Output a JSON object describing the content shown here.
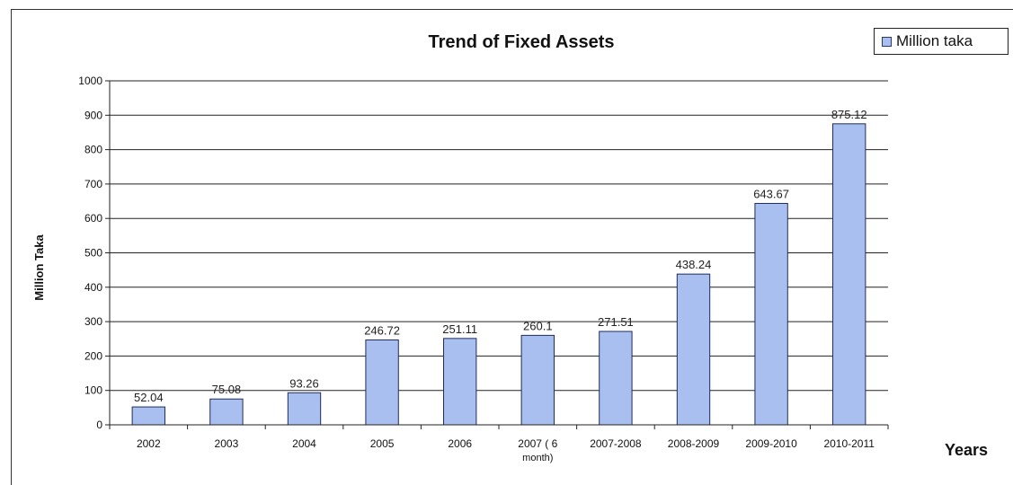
{
  "chart_data": {
    "type": "bar",
    "title": "Trend of Fixed Assets",
    "xlabel": "Years",
    "ylabel": "Million Taka",
    "ylim": [
      0,
      1000
    ],
    "yticks": [
      0,
      100,
      200,
      300,
      400,
      500,
      600,
      700,
      800,
      900,
      1000
    ],
    "grid": true,
    "legend_position": "top-right",
    "categories": [
      "2002",
      "2003",
      "2004",
      "2005",
      "2006",
      "2007 ( 6 month)",
      "2007-2008",
      "2008-2009",
      "2009-2010",
      "2010-2011"
    ],
    "series": [
      {
        "name": "Million taka",
        "values": [
          52.04,
          75.08,
          93.26,
          246.72,
          251.11,
          260.1,
          271.51,
          438.24,
          643.67,
          875.12
        ],
        "labels": [
          "52.04",
          "75.08",
          "93.26",
          "246.72",
          "251.11",
          "260.1",
          "271.51",
          "438.24",
          "643.67",
          "875.12"
        ],
        "color": "#a9bfef"
      }
    ]
  }
}
